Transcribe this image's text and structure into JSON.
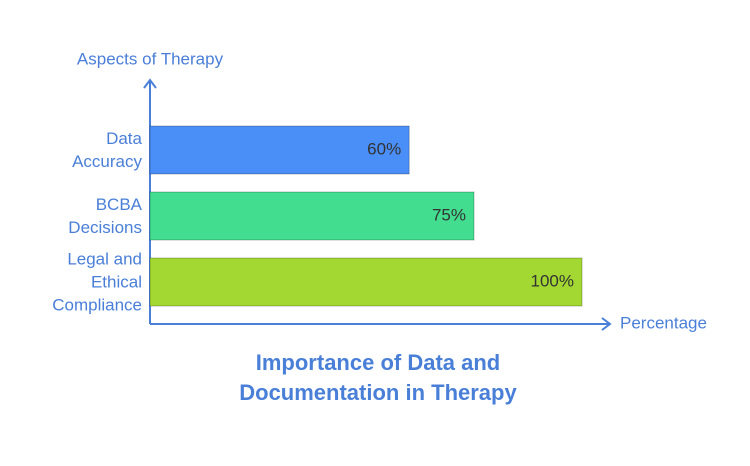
{
  "chart_data": {
    "type": "bar",
    "orientation": "horizontal",
    "title": "Importance of Data and Documentation in Therapy",
    "y_label": "Aspects of Therapy",
    "x_label": "Percentage",
    "categories": [
      "Data Accuracy",
      "BCBA Decisions",
      "Legal and Ethical Compliance"
    ],
    "values": [
      60,
      75,
      100
    ],
    "value_labels": [
      "60%",
      "75%",
      "100%"
    ],
    "colors": [
      "#4a8ef7",
      "#42dd8f",
      "#a3d832"
    ],
    "xlim": [
      0,
      100
    ]
  }
}
